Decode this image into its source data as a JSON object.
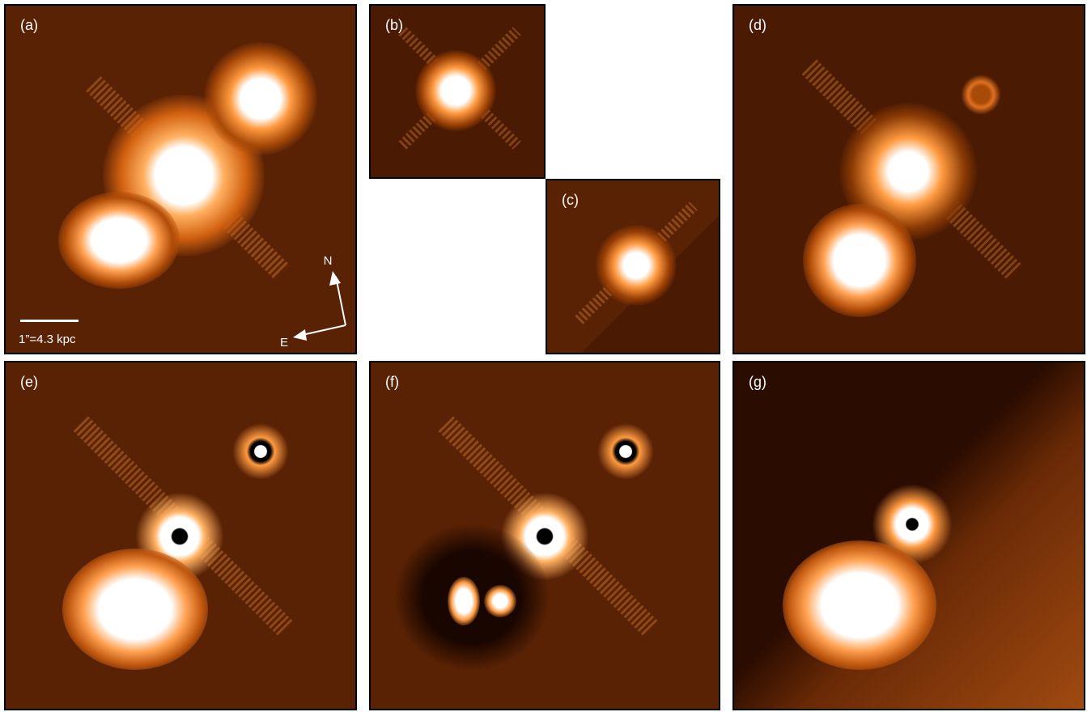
{
  "panels": [
    {
      "label": "(a)"
    },
    {
      "label": "(b)"
    },
    {
      "label": "(c)"
    },
    {
      "label": "(d)"
    },
    {
      "label": "(e)"
    },
    {
      "label": "(f)"
    },
    {
      "label": "(g)"
    }
  ],
  "compass": {
    "north": "N",
    "east": "E"
  },
  "scale_bar": "1”=4.3 kpc"
}
